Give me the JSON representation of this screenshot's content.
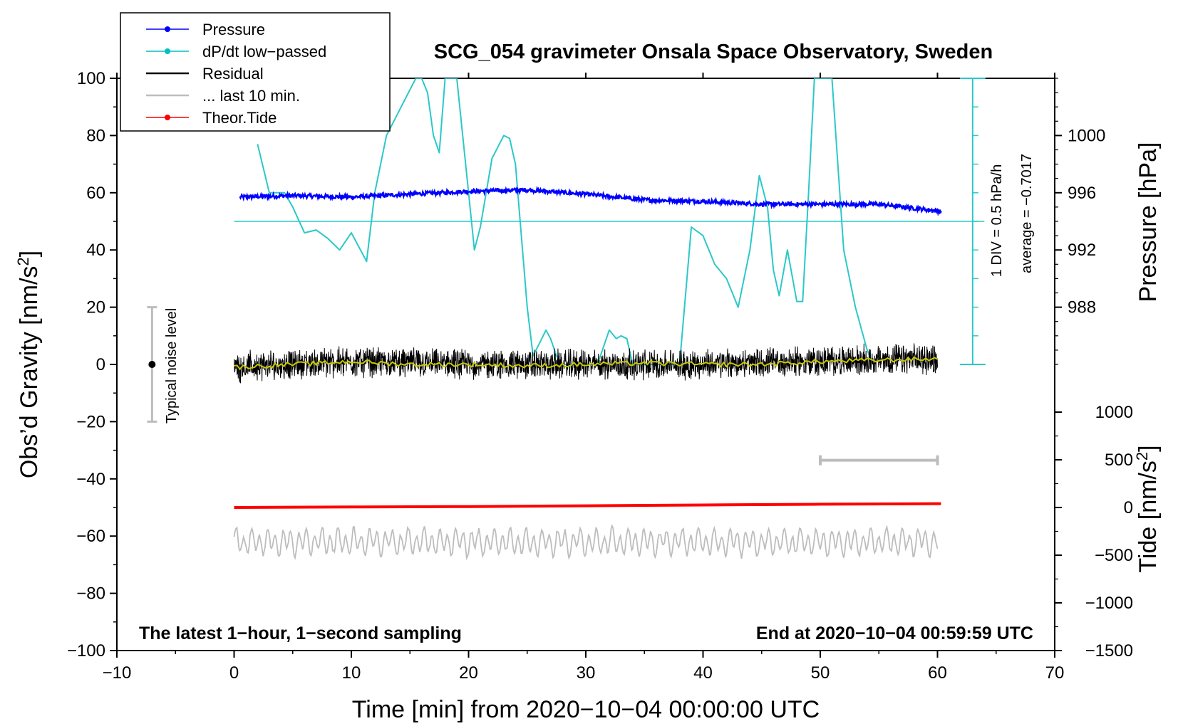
{
  "chart_data": {
    "type": "line",
    "title": "SCG_054 gravimeter Onsala Space Observatory, Sweden",
    "xlabel": "Time [min] from 2020−10−04 00:00:00 UTC",
    "ylabel_left": "Obs’d Gravity [nm/s",
    "ylabel_left_sup": "2",
    "ylabel_left_close": "]",
    "ylabel_right_pressure": "Pressure [hPa]",
    "ylabel_right_tide": "Tide [nm/s",
    "ylabel_right_tide_sup": "2",
    "ylabel_right_tide_close": "]",
    "xlim": [
      -10,
      70
    ],
    "ylim": [
      -100,
      100
    ],
    "x_ticks": [
      "−10",
      "0",
      "10",
      "20",
      "30",
      "40",
      "50",
      "60",
      "70"
    ],
    "x_tick_values": [
      -10,
      0,
      10,
      20,
      30,
      40,
      50,
      60,
      70
    ],
    "y_ticks": [
      "100",
      "80",
      "60",
      "40",
      "20",
      "0",
      "−20",
      "−40",
      "−60",
      "−80",
      "−100"
    ],
    "y_tick_values": [
      100,
      80,
      60,
      40,
      20,
      0,
      -20,
      -40,
      -60,
      -80,
      -100
    ],
    "pressure_axis": {
      "range_hPa": [
        984,
        1004
      ],
      "ticks": [
        "1000",
        "996",
        "992",
        "988"
      ],
      "tick_values": [
        1000,
        996,
        992,
        988
      ]
    },
    "tide_axis": {
      "range_nm_s2": [
        -1500,
        1500
      ],
      "ticks": [
        "1000",
        "500",
        "0",
        "−500",
        "−1000",
        "−1500"
      ],
      "tick_values": [
        1000,
        500,
        0,
        -500,
        -1000,
        -1500
      ]
    },
    "legend": [
      {
        "label": "Pressure",
        "color": "#0000ff",
        "marker": true
      },
      {
        "label": "dP/dt low−passed",
        "color": "#00c0c0",
        "marker": true
      },
      {
        "label": "Residual",
        "color": "#000000",
        "marker": false
      },
      {
        "label": "... last 10 min.",
        "color": "#bdbdbd",
        "marker": false
      },
      {
        "label": "Theor.Tide",
        "color": "#ff0000",
        "marker": true
      }
    ],
    "dpdt_scale": {
      "line1": "1 DIV = 0.5 hPa/h",
      "line2": "average = −0.7017",
      "baseline_gravity_units": 50
    },
    "noise_level": {
      "label": "Typical noise level",
      "x": -7,
      "center": 0,
      "halfwidth": 20
    },
    "footer_left": "The latest 1−hour, 1−second sampling",
    "footer_right": "End at 2020−10−04 00:59:59 UTC",
    "last10_bar": {
      "x_start": 50,
      "x_end": 60
    },
    "series": [
      {
        "name": "Pressure",
        "units": "hPa",
        "color": "#0000ff",
        "x": [
          0.5,
          5,
          10,
          15,
          20,
          25,
          30,
          35,
          40,
          45,
          50,
          55,
          60.3
        ],
        "values": [
          995.7,
          995.8,
          995.7,
          995.9,
          996.1,
          996.2,
          995.9,
          995.5,
          995.4,
          995.2,
          995.2,
          995.2,
          994.7
        ]
      },
      {
        "name": "dP/dt low−passed",
        "units": "gravity-axis units",
        "color": "#00c0c0",
        "x": [
          2,
          3,
          4.3,
          5,
          6,
          7,
          8,
          9,
          10,
          11.3,
          12,
          13,
          14,
          15.5,
          16,
          16.5,
          17,
          17.5,
          18,
          18.5,
          19,
          20,
          20.5,
          21,
          22,
          23,
          23.5,
          24,
          25,
          25.5,
          26,
          26.6,
          27,
          27.5,
          28,
          29,
          30,
          31,
          32,
          32.6,
          33,
          33.5,
          34,
          35,
          36,
          37,
          38,
          39,
          40,
          41,
          42,
          43,
          44,
          44.8,
          45.5,
          46,
          46.5,
          47.2,
          48,
          48.5,
          49,
          49.5,
          50,
          51,
          52,
          53,
          54,
          54.5
        ],
        "values": [
          77,
          60,
          60,
          55,
          46,
          47,
          44,
          40,
          46,
          36,
          60,
          80,
          88,
          100,
          100,
          95,
          80,
          74,
          100,
          100,
          100,
          60,
          40,
          48,
          72,
          80,
          79,
          70,
          20,
          3,
          7,
          12,
          9,
          3,
          0,
          0,
          0,
          0,
          12,
          9,
          10,
          9,
          0,
          0,
          0,
          0,
          0,
          48,
          45,
          35,
          30,
          20,
          40,
          66,
          55,
          33,
          24,
          40,
          22,
          22,
          60,
          100,
          100,
          100,
          40,
          20,
          5,
          0
        ]
      },
      {
        "name": "Residual",
        "units": "nm/s2",
        "color": "#000000",
        "x": [
          0,
          10,
          20,
          30,
          40,
          50,
          60
        ],
        "values": [
          -1,
          1,
          0,
          0,
          0,
          1,
          2
        ]
      },
      {
        "name": "Residual smoothed",
        "units": "nm/s2",
        "color": "#c8c800",
        "x": [
          0,
          5,
          10,
          15,
          20,
          25,
          30,
          35,
          40,
          45,
          50,
          55,
          60
        ],
        "values": [
          -1,
          0,
          1,
          0,
          0,
          -0.5,
          0,
          0.5,
          0,
          0,
          1,
          1.5,
          2
        ]
      },
      {
        "name": "... last 10 min.",
        "units": "nm/s2 (offset −62)",
        "color": "#bdbdbd",
        "x": [
          0,
          60
        ],
        "values": [
          -62,
          -62
        ]
      },
      {
        "name": "Theor.Tide",
        "units": "nm/s2",
        "color": "#ff0000",
        "x": [
          0,
          10,
          20,
          30,
          40,
          50,
          60.3
        ],
        "values": [
          0,
          5,
          10,
          18,
          26,
          34,
          40
        ]
      }
    ]
  }
}
